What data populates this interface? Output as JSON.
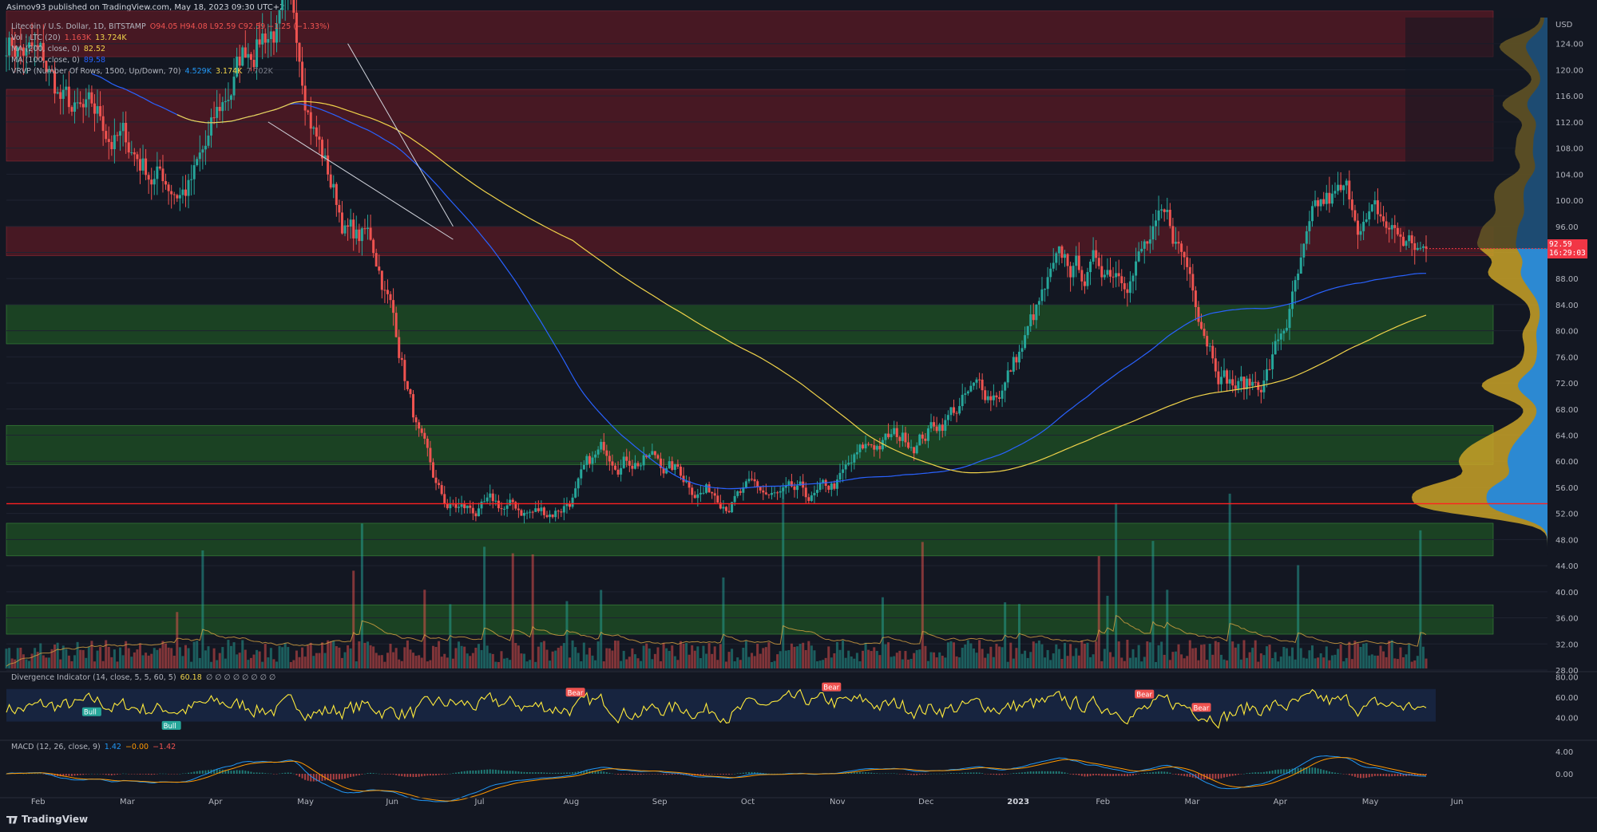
{
  "header": {
    "publisher": "Asimov93 published on TradingView.com, May 18, 2023 09:30 UTC+2"
  },
  "legend": {
    "symbol": {
      "label": "Litecoin / U.S. Dollar, 1D, BITSTAMP",
      "values": "O94.05  H94.08  L92.59  C92.59  −1.25 (−1.33%)"
    },
    "vol": {
      "label": "Vol · LTC (20)",
      "v1": "1.163K",
      "v2": "13.724K"
    },
    "ma200": {
      "label": "MA (200, close, 0)",
      "value": "82.52"
    },
    "ma100": {
      "label": "MA (100, close, 0)",
      "value": "89.58"
    },
    "vrvp": {
      "label": "VRVP (Number Of Rows, 1500, Up/Down, 70)",
      "v1": "4.529K",
      "v2": "3.174K",
      "v3": "7.702K"
    },
    "div": {
      "label": "Divergence Indicator (14, close, 5, 5, 60, 5)",
      "value": "60.18",
      "rest": "∅ ∅ ∅ ∅ ∅ ∅ ∅ ∅"
    },
    "macd": {
      "label": "MACD (12, 26, close, 9)",
      "v1": "1.42",
      "v2": "−0.00",
      "v3": "−1.42"
    }
  },
  "footer": {
    "brand": "TradingView"
  },
  "price_tag": {
    "price": "92.59",
    "countdown": "16:29:03"
  },
  "colors": {
    "up": "#26a69a",
    "down": "#ef5350",
    "ma100": "#2962ff",
    "ma200": "#f0d34a",
    "resistance_zone": "#5a1a24",
    "support_zone": "#1d4a23",
    "div_line": "#ffeb3b",
    "support_line": "#ff2020"
  },
  "chart_data": [
    {
      "type": "candlestick",
      "title": "Litecoin / U.S. Dollar, 1D, BITSTAMP",
      "ylabel": "USD",
      "ylim": [
        28,
        128
      ],
      "yticks": [
        28,
        32,
        36,
        40,
        44,
        48,
        52,
        56,
        60,
        64,
        68,
        72,
        76,
        80,
        84,
        88,
        92,
        96,
        100,
        104,
        108,
        112,
        116,
        120,
        124
      ],
      "x_ticks": [
        "Feb",
        "Mar",
        "Apr",
        "May",
        "Jun",
        "Jul",
        "Aug",
        "Sep",
        "Oct",
        "Nov",
        "Dec",
        "2023",
        "Feb",
        "Mar",
        "Apr",
        "May",
        "Jun"
      ],
      "close_path": [
        {
          "month": "Jan 2022",
          "value": 125
        },
        {
          "month": "Feb 2022",
          "value": 110
        },
        {
          "month": "Mar 2022",
          "value": 103
        },
        {
          "month": "Apr 2022",
          "value": 128
        },
        {
          "month": "May 2022",
          "value": 94
        },
        {
          "month": "Jun 2022",
          "value": 52
        },
        {
          "month": "Jul 2022",
          "value": 52
        },
        {
          "month": "Aug 2022",
          "value": 62
        },
        {
          "month": "Sep 2022",
          "value": 56
        },
        {
          "month": "Oct 2022",
          "value": 53
        },
        {
          "month": "Nov 2022",
          "value": 63
        },
        {
          "month": "Dec 2022",
          "value": 70
        },
        {
          "month": "Jan 2023",
          "value": 88
        },
        {
          "month": "Feb 2023",
          "value": 94
        },
        {
          "month": "Mar 2023",
          "value": 72
        },
        {
          "month": "Apr 2023",
          "value": 98
        },
        {
          "month": "May 2023",
          "value": 92.59
        }
      ],
      "resistance_zones": [
        [
          122,
          129
        ],
        [
          106,
          117
        ],
        [
          91.5,
          96
        ]
      ],
      "support_zones": [
        [
          78,
          84
        ],
        [
          59.5,
          65.5
        ],
        [
          45.5,
          50.5
        ],
        [
          33.5,
          38
        ]
      ],
      "support_line": 53.5,
      "last_price": 92.59,
      "ma200_last": 82.52,
      "ma100_last": 89.58
    },
    {
      "type": "line",
      "title": "Divergence Indicator (14, close, 5, 5, 60, 5)",
      "ylim": [
        20,
        85
      ],
      "yticks": [
        40,
        60,
        80
      ],
      "band": [
        36,
        68
      ],
      "last_value": 60.18,
      "labels": [
        {
          "text": "Bull"
        },
        {
          "text": "Bull"
        },
        {
          "text": "Bear"
        },
        {
          "text": "Bear"
        },
        {
          "text": "Bear"
        },
        {
          "text": "Bear"
        }
      ]
    },
    {
      "type": "line",
      "title": "MACD (12, 26, close, 9)",
      "ylim": [
        -4,
        6
      ],
      "yticks": [
        0.0,
        4.0
      ],
      "last": {
        "macd": 1.42,
        "signal": -0.0,
        "histogram": -1.42
      }
    }
  ]
}
